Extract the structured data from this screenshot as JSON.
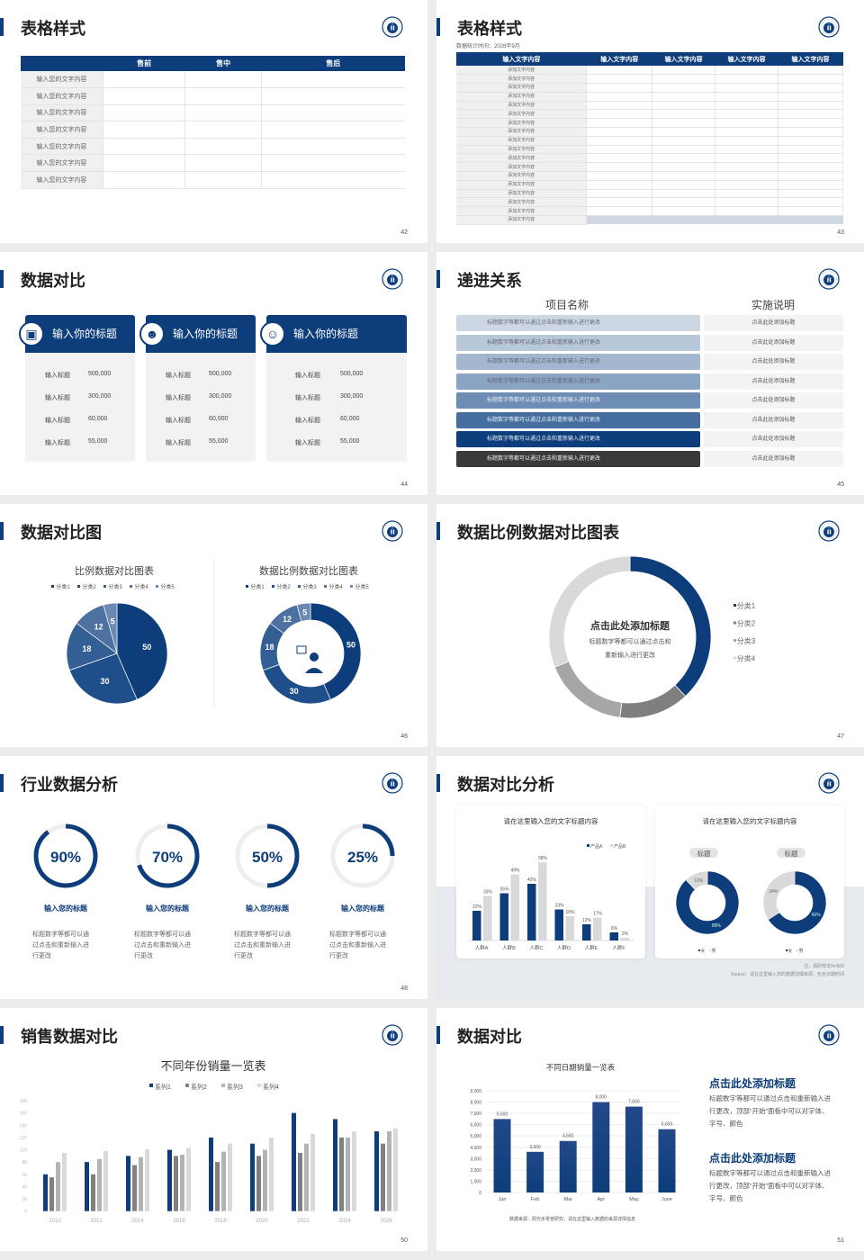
{
  "colors": {
    "primary": "#0d3d7a",
    "grey": "#888888",
    "light": "#d9d9d9"
  },
  "logo_icon": "university-seal-icon",
  "s42": {
    "title": "表格样式",
    "page": "42",
    "headers": [
      "",
      "售前",
      "售中",
      "售后"
    ],
    "rows": [
      "输入您的文字内容",
      "输入您的文字内容",
      "输入您的文字内容",
      "输入您的文字内容",
      "输入您的文字内容",
      "输入您的文字内容",
      "输入您的文字内容"
    ]
  },
  "s43": {
    "title": "表格样式",
    "page": "43",
    "subtitle": "数据统计时间：2028年9月",
    "headers": [
      "输入文字内容",
      "输入文字内容",
      "输入文字内容",
      "输入文字内容",
      "输入文字内容"
    ],
    "row_label": "添加文字内容",
    "row_count": 18
  },
  "s44": {
    "title": "数据对比",
    "page": "44",
    "cards": [
      {
        "title": "输入你的标题",
        "icon": "id-card-icon",
        "rows": [
          [
            "输入标题",
            "500,000"
          ],
          [
            "输入标题",
            "300,000"
          ],
          [
            "输入标题",
            "60,000"
          ],
          [
            "输入标题",
            "55,000"
          ]
        ]
      },
      {
        "title": "输入你的标题",
        "icon": "user-add-icon",
        "rows": [
          [
            "输入标题",
            "500,000"
          ],
          [
            "输入标题",
            "300,000"
          ],
          [
            "输入标题",
            "60,000"
          ],
          [
            "输入标题",
            "55,000"
          ]
        ]
      },
      {
        "title": "输入你的标题",
        "icon": "team-icon",
        "rows": [
          [
            "输入标题",
            "500,000"
          ],
          [
            "输入标题",
            "300,000"
          ],
          [
            "输入标题",
            "60,000"
          ],
          [
            "输入标题",
            "55,000"
          ]
        ]
      }
    ]
  },
  "s45": {
    "title": "递进关系",
    "page": "45",
    "col1": "项目名称",
    "col2": "实施说明",
    "item": "标题数字等都可以通过点击和重新输入进行更改",
    "note": "点击此处添加标题",
    "colors": [
      "#cdd7e3",
      "#b8c8da",
      "#a2b7cf",
      "#8aa4c3",
      "#6e8db5",
      "#456e9f",
      "#0d3d7a",
      "#3a3a3a"
    ]
  },
  "s46": {
    "title": "数据对比图",
    "page": "46"
  },
  "s47": {
    "title": "数据比例数据对比图表",
    "page": "47",
    "center_title": "点击此处添加标题",
    "center_text1": "标题数字等都可以通过点击和",
    "center_text2": "重新输入进行更改"
  },
  "s48": {
    "title": "行业数据分析",
    "page": "48",
    "items": [
      {
        "percent": 90,
        "label": "90%",
        "title": "输入您的标题",
        "text": [
          "标题数字等都可以通",
          "过点击和重新输入进",
          "行更改"
        ]
      },
      {
        "percent": 70,
        "label": "70%",
        "title": "输入您的标题",
        "text": [
          "标题数字等都可以通",
          "过点击和重新输入进",
          "行更改"
        ]
      },
      {
        "percent": 50,
        "label": "50%",
        "title": "输入您的标题",
        "text": [
          "标题数字等都可以通",
          "过点击和重新输入进",
          "行更改"
        ]
      },
      {
        "percent": 25,
        "label": "25%",
        "title": "输入您的标题",
        "text": [
          "标题数字等都可以通",
          "过点击和重新输入进",
          "行更改"
        ]
      }
    ]
  },
  "s49": {
    "title": "数据对比分析",
    "page": "49",
    "note": "注：调研样本N=500",
    "source": "Source：请在这里输入您的数据详细来源，包含日期时间",
    "donut_tag": "标题"
  },
  "s50": {
    "title": "销售数据对比",
    "page": "50"
  },
  "s51": {
    "title": "数据对比",
    "page": "51",
    "source": "数据来源：阳光禾零普研究，请在这里输入数据的来源详情信息",
    "blocks": [
      {
        "title": "点击此处添加标题",
        "text": [
          "标题数字等都可以通过点击和重新输入进",
          "行更改，顶部“开始”面板中可以对字体、",
          "字号、颜色"
        ]
      },
      {
        "title": "点击此处添加标题",
        "text": [
          "标题数字等都可以通过点击和重新输入进",
          "行更改，顶部“开始”面板中可以对字体、",
          "字号、颜色"
        ]
      }
    ]
  },
  "chart_data": [
    {
      "id": "s46-pie",
      "type": "pie",
      "title": "比例数据对比图表",
      "legend": [
        "分类1",
        "分类2",
        "分类3",
        "分类4",
        "分类5"
      ],
      "values": [
        50,
        30,
        18,
        12,
        5
      ],
      "legend_position": "top"
    },
    {
      "id": "s46-donut",
      "type": "pie",
      "donut": true,
      "title": "数据比例数据对比图表",
      "legend": [
        "分类1",
        "分类2",
        "分类3",
        "分类4",
        "分类5"
      ],
      "values": [
        50,
        30,
        18,
        12,
        5
      ],
      "center_icon": "customer-service-icon",
      "legend_position": "top"
    },
    {
      "id": "s47-donut",
      "type": "pie",
      "donut": true,
      "legend": [
        "分类1",
        "分类2",
        "分类3",
        "分类4"
      ],
      "values": [
        38,
        14,
        17,
        31
      ],
      "colors": [
        "#0d3d7a",
        "#7f7f7f",
        "#a6a6a6",
        "#d9d9d9"
      ],
      "legend_position": "right"
    },
    {
      "id": "s49-bar",
      "type": "bar",
      "title": "请在这里输入您的文字标题内容",
      "categories": [
        "人群A",
        "人群B",
        "人群C",
        "人群D",
        "人群E",
        "人群F"
      ],
      "series": [
        {
          "name": "产品A",
          "values": [
            22,
            35,
            42,
            23,
            12,
            6
          ]
        },
        {
          "name": "产品B",
          "values": [
            33,
            49,
            58,
            18,
            17,
            2
          ]
        }
      ],
      "unit": "%",
      "legend_position": "top-right"
    },
    {
      "id": "s49-donuts",
      "type": "pie",
      "donut": true,
      "title": "请在这里输入您的文字标题内容",
      "legend": [
        "女",
        "男"
      ],
      "charts": [
        {
          "values": [
            88,
            12
          ],
          "labels": [
            "88%",
            "12%"
          ]
        },
        {
          "values": [
            66,
            34
          ],
          "labels": [
            "66%",
            "34%"
          ]
        }
      ]
    },
    {
      "id": "s50-bar",
      "type": "bar",
      "title": "不同年份销量一览表",
      "categories": [
        "2010",
        "2012",
        "2014",
        "2016",
        "2018",
        "2020",
        "2022",
        "2024",
        "2026"
      ],
      "series": [
        {
          "name": "系列1",
          "values": [
            60,
            80,
            90,
            100,
            120,
            110,
            160,
            150,
            130
          ]
        },
        {
          "name": "系列2",
          "values": [
            55,
            60,
            75,
            90,
            80,
            90,
            95,
            120,
            110
          ]
        },
        {
          "name": "系列3",
          "values": [
            80,
            85,
            88,
            92,
            97,
            100,
            110,
            120,
            130
          ]
        },
        {
          "name": "系列4",
          "values": [
            95,
            98,
            101,
            103,
            110,
            120,
            126,
            130,
            135
          ]
        }
      ],
      "ylim": [
        0,
        180
      ],
      "yticks": [
        0,
        20,
        40,
        60,
        80,
        100,
        120,
        140,
        160,
        180
      ],
      "legend_position": "top"
    },
    {
      "id": "s51-bar",
      "type": "bar",
      "title": "不同日期销量一览表",
      "categories": [
        "Jan",
        "Feb",
        "Mar",
        "Apr",
        "May",
        "June"
      ],
      "values": [
        6500,
        3600,
        4560,
        8000,
        7600,
        5600
      ],
      "labels": [
        "6,500",
        "3,600",
        "4,560",
        "8,000",
        "7,600",
        "5,600"
      ],
      "ylim": [
        0,
        9000
      ],
      "yticks": [
        "0",
        "1,000",
        "2,000",
        "3,000",
        "4,000",
        "5,000",
        "6,000",
        "7,000",
        "8,000",
        "9,000"
      ],
      "grid": true
    }
  ]
}
